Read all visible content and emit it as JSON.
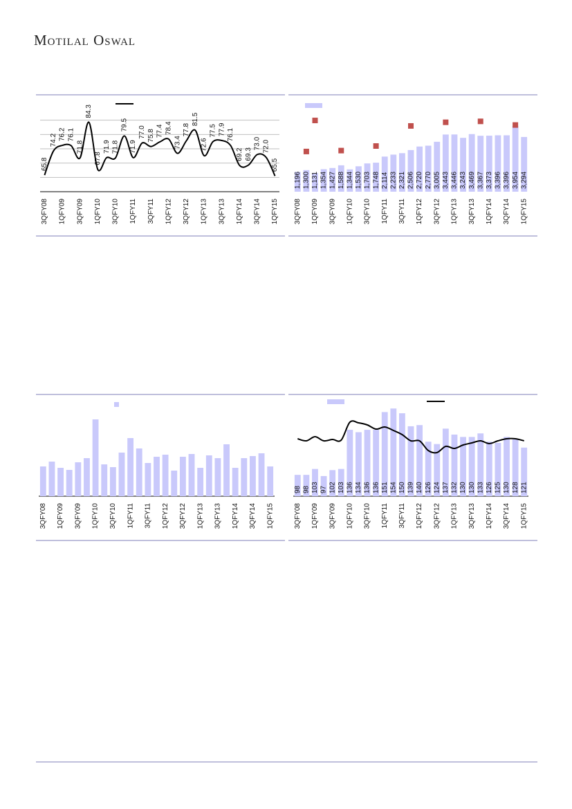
{
  "header": {
    "logo": "Motilal Oswal"
  },
  "chart_data": [
    {
      "type": "line",
      "categories": [
        "3QFY08",
        null,
        "1QFY09",
        null,
        "3QFY09",
        null,
        "1QFY10",
        null,
        "3QFY10",
        null,
        "1QFY11",
        null,
        "3QFY11",
        null,
        "1QFY12",
        null,
        "3QFY12",
        null,
        "1QFY13",
        null,
        "3QFY13",
        null,
        "1QFY14",
        null,
        "3QFY14",
        null,
        "1QFY15"
      ],
      "series": [
        {
          "color": "#000000",
          "values": [
            65.8,
            74.2,
            76.2,
            76.1,
            71.8,
            84.3,
            67.8,
            71.9,
            71.8,
            79.5,
            71.9,
            77.0,
            75.8,
            77.4,
            78.4,
            73.4,
            77.8,
            81.5,
            72.6,
            77.5,
            77.9,
            76.1,
            69.2,
            69.3,
            73.0,
            72.0,
            65.5
          ],
          "value_labels": [
            "65.8",
            "74.2",
            "76.2",
            "76.1",
            "71.8",
            "84.3",
            "67.8",
            "71.9",
            "71.8",
            "79.5",
            "71.9",
            "77.0",
            "75.8",
            "77.4",
            "78.4",
            "73.4",
            "77.8",
            "81.5",
            "72.6",
            "77.5",
            "77.9",
            "76.1",
            "69.2",
            "69.3",
            "73.0",
            "72.0",
            "65.5"
          ]
        }
      ],
      "ylim": [
        60,
        90
      ],
      "grid_values": [
        65,
        70,
        75,
        80,
        85
      ],
      "axis_line": true
    },
    {
      "type": "bar",
      "categories": [
        "3QFY08",
        null,
        "1QFY09",
        null,
        "3QFY09",
        null,
        "1QFY10",
        null,
        "3QFY10",
        null,
        "1QFY11",
        null,
        "3QFY11",
        null,
        "1QFY12",
        null,
        "3QFY12",
        null,
        "1QFY13",
        null,
        "3QFY13",
        null,
        "1QFY14",
        null,
        "3QFY14",
        null,
        "1QFY15"
      ],
      "series": [
        {
          "color": "#c9c9fb",
          "values": [
            1196,
            1300,
            1131,
            1354,
            1427,
            1588,
            1344,
            1530,
            1703,
            1748,
            2114,
            2233,
            2321,
            2506,
            2720,
            2770,
            3005,
            3443,
            3446,
            3243,
            3469,
            3367,
            3373,
            3396,
            3396,
            3954,
            3294
          ],
          "value_labels": [
            "1,196",
            "1,300",
            "1,131",
            "1,354",
            "1,427",
            "1,588",
            "1,344",
            "1,530",
            "1,703",
            "1,748",
            "2,114",
            "2,233",
            "2,321",
            "2,506",
            "2,720",
            "2,770",
            "3,005",
            "3,443",
            "3,446",
            "3,243",
            "3,469",
            "3,367",
            "3,373",
            "3,396",
            "3,396",
            "3,954",
            "3,294"
          ]
        },
        {
          "type": "scatter",
          "axis": "y2",
          "color": "#c0504d",
          "values": [
            null,
            44,
            78,
            null,
            null,
            45,
            null,
            null,
            null,
            50,
            null,
            null,
            null,
            72,
            null,
            null,
            null,
            76,
            null,
            null,
            null,
            77,
            null,
            null,
            null,
            73,
            null
          ]
        }
      ],
      "ylim": [
        0,
        5500
      ],
      "y2lim": [
        0,
        100
      ]
    },
    {
      "type": "bar",
      "categories": [
        "3QFY08",
        null,
        "1QFY09",
        null,
        "3QFY09",
        null,
        "1QFY10",
        null,
        "3QFY10",
        null,
        "1QFY11",
        null,
        "3QFY11",
        null,
        "1QFY12",
        null,
        "3QFY12",
        null,
        "1QFY13",
        null,
        "3QFY13",
        null,
        "1QFY14",
        null,
        "3QFY14",
        null,
        "1QFY15"
      ],
      "series": [
        {
          "color": "#c9c9fb",
          "values": [
            43,
            50,
            41,
            38,
            49,
            55,
            111,
            46,
            42,
            63,
            84,
            69,
            48,
            57,
            60,
            37,
            57,
            61,
            41,
            59,
            55,
            75,
            41,
            55,
            58,
            62,
            43
          ]
        }
      ],
      "ylim": [
        0,
        137
      ],
      "axis_line": true
    },
    {
      "type": "bar",
      "categories": [
        "3QFY08",
        null,
        "1QFY09",
        null,
        "3QFY09",
        null,
        "1QFY10",
        null,
        "3QFY10",
        null,
        "1QFY11",
        null,
        "3QFY11",
        null,
        "1QFY12",
        null,
        "3QFY12",
        null,
        "1QFY13",
        null,
        "3QFY13",
        null,
        "1QFY14",
        null,
        "3QFY14",
        null,
        "1QFY15"
      ],
      "series": [
        {
          "color": "#c9c9fb",
          "values": [
            98,
            98,
            103,
            97,
            102,
            103,
            136,
            134,
            136,
            136,
            151,
            154,
            150,
            139,
            140,
            126,
            124,
            137,
            132,
            130,
            130,
            133,
            126,
            125,
            130,
            128,
            121
          ]
        },
        {
          "type": "line",
          "axis": "y2",
          "color": "#000000",
          "values": [
            83,
            80,
            86,
            80,
            82,
            81,
            107,
            106,
            103,
            97,
            100,
            95,
            89,
            80,
            80,
            66,
            63,
            72,
            69,
            74,
            77,
            80,
            76,
            80,
            83,
            83,
            80
          ]
        }
      ],
      "ylim": [
        80,
        160
      ],
      "y2lim": [
        0,
        137
      ],
      "axis_line": true
    }
  ]
}
